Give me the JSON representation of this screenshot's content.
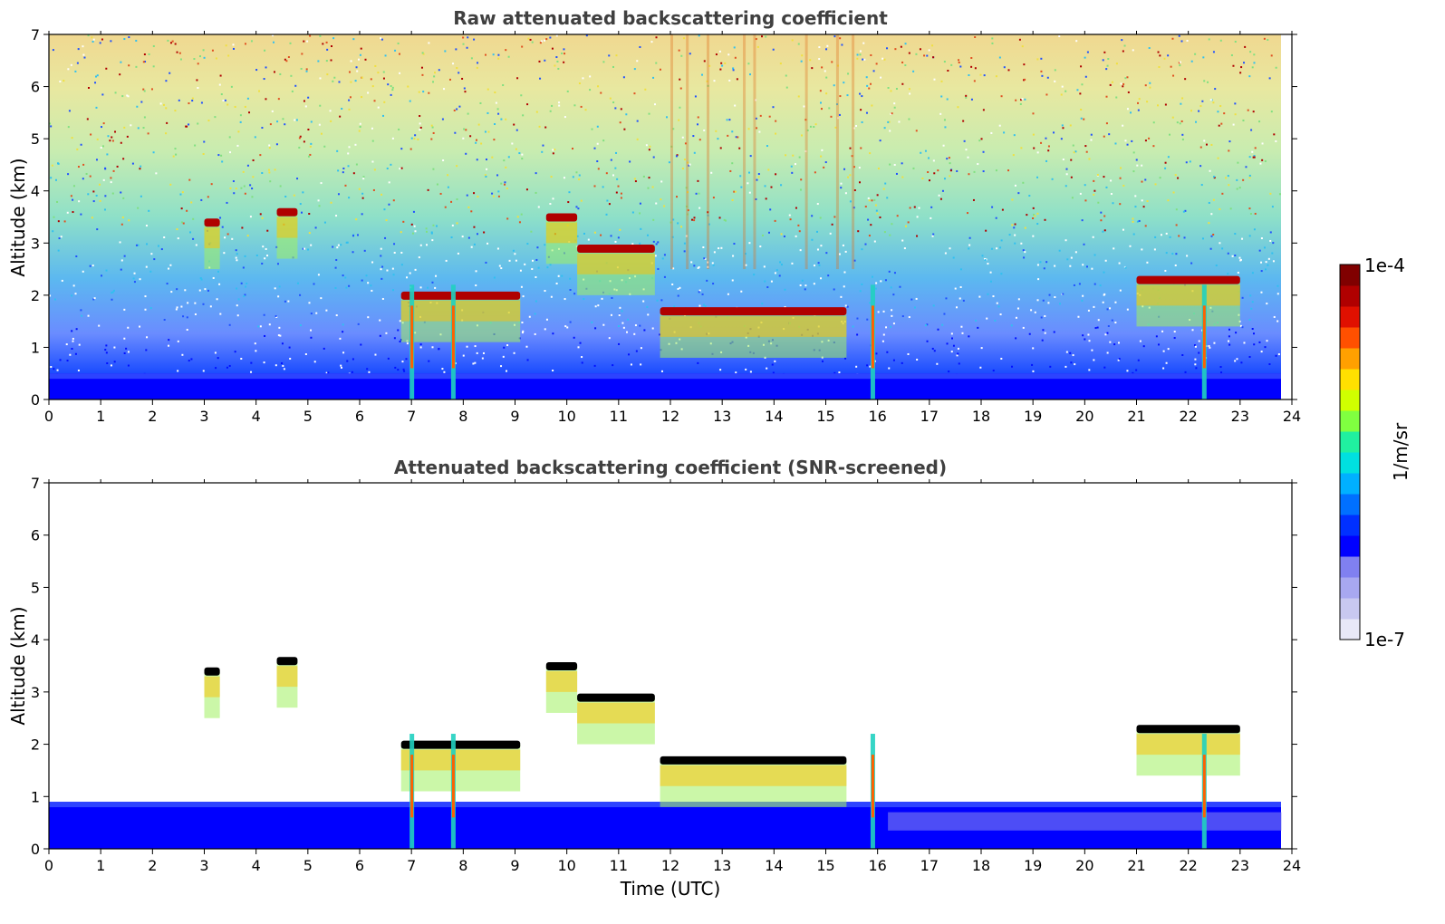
{
  "colorbar": {
    "max_label": "1e-4",
    "min_label": "1e-7",
    "unit_label": "1/m/sr",
    "colors": [
      "#e8e8f8",
      "#c8c8f0",
      "#a8a8f0",
      "#8080f0",
      "#0000ff",
      "#0030ff",
      "#0070ff",
      "#00b0ff",
      "#00e0e0",
      "#20f0a0",
      "#80ff40",
      "#d0ff00",
      "#ffe000",
      "#ffa000",
      "#ff5000",
      "#e01000",
      "#b00000",
      "#800000"
    ]
  },
  "chart_data": [
    {
      "type": "heatmap",
      "title": "Raw attenuated backscattering coefficient",
      "xlabel": "",
      "ylabel": "Altitude (km)",
      "xlim": [
        0,
        24
      ],
      "ylim": [
        0,
        7
      ],
      "xticks": [
        "0",
        "1",
        "2",
        "3",
        "4",
        "5",
        "6",
        "7",
        "8",
        "9",
        "10",
        "11",
        "12",
        "13",
        "14",
        "15",
        "16",
        "17",
        "18",
        "19",
        "20",
        "21",
        "22",
        "23",
        "24"
      ],
      "yticks": [
        "0",
        "1",
        "2",
        "3",
        "4",
        "5",
        "6",
        "7"
      ],
      "colorbar_range": [
        1e-07,
        0.0001
      ],
      "colorbar_scale": "log",
      "features": {
        "boundary_layer_top_km": 0.5,
        "cloud_layers": [
          {
            "time_start": 3.0,
            "time_end": 3.3,
            "altitude_km": 3.4
          },
          {
            "time_start": 4.4,
            "time_end": 4.8,
            "altitude_km": 3.6
          },
          {
            "time_start": 6.8,
            "time_end": 9.1,
            "altitude_km": 2.0
          },
          {
            "time_start": 9.6,
            "time_end": 10.2,
            "altitude_km": 3.5
          },
          {
            "time_start": 10.2,
            "time_end": 11.7,
            "altitude_km": 2.9
          },
          {
            "time_start": 11.8,
            "time_end": 15.4,
            "altitude_km": 1.7
          },
          {
            "time_start": 21.0,
            "time_end": 23.0,
            "altitude_km": 2.3
          }
        ],
        "precipitation_shafts_utc": [
          7.0,
          7.8,
          15.9,
          22.3
        ]
      }
    },
    {
      "type": "heatmap",
      "title": "Attenuated backscattering coefficient (SNR-screened)",
      "xlabel": "Time (UTC)",
      "ylabel": "Altitude (km)",
      "xlim": [
        0,
        24
      ],
      "ylim": [
        0,
        7
      ],
      "xticks": [
        "0",
        "1",
        "2",
        "3",
        "4",
        "5",
        "6",
        "7",
        "8",
        "9",
        "10",
        "11",
        "12",
        "13",
        "14",
        "15",
        "16",
        "17",
        "18",
        "19",
        "20",
        "21",
        "22",
        "23",
        "24"
      ],
      "yticks": [
        "0",
        "1",
        "2",
        "3",
        "4",
        "5",
        "6",
        "7"
      ],
      "colorbar_range": [
        1e-07,
        0.0001
      ],
      "colorbar_scale": "log",
      "features": {
        "boundary_layer_top_km": 0.9,
        "cloud_layers": [
          {
            "time_start": 3.0,
            "time_end": 3.3,
            "altitude_km": 3.4
          },
          {
            "time_start": 4.4,
            "time_end": 4.8,
            "altitude_km": 3.6
          },
          {
            "time_start": 6.8,
            "time_end": 9.1,
            "altitude_km": 2.0
          },
          {
            "time_start": 9.6,
            "time_end": 10.2,
            "altitude_km": 3.5
          },
          {
            "time_start": 10.2,
            "time_end": 11.7,
            "altitude_km": 2.9
          },
          {
            "time_start": 11.8,
            "time_end": 15.4,
            "altitude_km": 1.7
          },
          {
            "time_start": 21.0,
            "time_end": 23.0,
            "altitude_km": 2.3
          }
        ],
        "precipitation_shafts_utc": [
          7.0,
          7.8,
          15.9,
          22.3
        ]
      }
    }
  ]
}
